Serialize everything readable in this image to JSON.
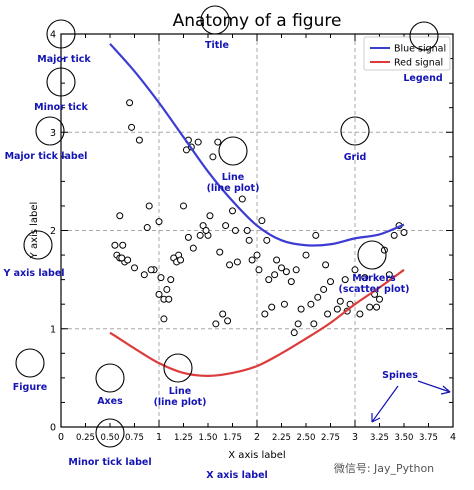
{
  "chart_data": {
    "type": "line",
    "title": "Anatomy of a figure",
    "xlabel": "X axis label",
    "ylabel": "Y axis label",
    "xlim": [
      0,
      4
    ],
    "ylim": [
      0,
      4
    ],
    "grid": true,
    "legend_position": "top-right",
    "major_xticks": [
      "0",
      "1",
      "2",
      "3",
      "4"
    ],
    "major_yticks": [
      "0",
      "1",
      "2",
      "3",
      "4"
    ],
    "minor_xticks": [
      "0.25",
      "0.50",
      "0.75",
      "1.25",
      "1.50",
      "1.75",
      "2.25",
      "2.50",
      "2.75",
      "3.25",
      "3.50",
      "3.75"
    ],
    "series": [
      {
        "name": "Blue signal",
        "color": "#3c3cd2",
        "x": [
          0.5,
          0.75,
          1.0,
          1.25,
          1.5,
          1.75,
          2.0,
          2.25,
          2.5,
          2.75,
          3.0,
          3.25,
          3.5
        ],
        "y": [
          3.9,
          3.62,
          3.3,
          2.95,
          2.6,
          2.3,
          2.05,
          1.9,
          1.85,
          1.86,
          1.92,
          1.96,
          2.06
        ]
      },
      {
        "name": "Red signal",
        "color": "#dc3c3c",
        "x": [
          0.5,
          0.75,
          1.0,
          1.25,
          1.5,
          1.75,
          2.0,
          2.25,
          2.5,
          2.75,
          3.0,
          3.25,
          3.5
        ],
        "y": [
          0.96,
          0.8,
          0.65,
          0.55,
          0.52,
          0.55,
          0.62,
          0.75,
          0.9,
          1.06,
          1.25,
          1.42,
          1.6
        ]
      },
      {
        "name": "Markers",
        "type": "scatter",
        "x": [
          0.7,
          0.72,
          0.8,
          0.6,
          0.63,
          0.9,
          0.88,
          1.0,
          1.05,
          1.28,
          1.33,
          1.4,
          1.55,
          1.6,
          1.25,
          1.2,
          0.95,
          1.02,
          1.08,
          1.15,
          1.3,
          1.45,
          1.5,
          1.68,
          1.75,
          1.85,
          1.9,
          2.05,
          2.1,
          2.2,
          2.3,
          2.4,
          2.5,
          2.6,
          2.7,
          2.75,
          2.9,
          3.0,
          3.1,
          3.2,
          3.3,
          3.35,
          3.4,
          3.45,
          3.5,
          0.55,
          0.57,
          0.6,
          0.65,
          0.75,
          0.85,
          1.12,
          1.18,
          1.22,
          1.35,
          1.42,
          1.52,
          1.62,
          1.72,
          1.8,
          1.95,
          2.0,
          2.02,
          2.12,
          2.18,
          2.25,
          2.35,
          2.45,
          2.55,
          2.62,
          2.68,
          2.82,
          2.92,
          3.05,
          3.15,
          3.25,
          0.62,
          0.68,
          1.0,
          1.05,
          1.3,
          1.58,
          1.65,
          1.78,
          1.92,
          2.08,
          2.28,
          2.42,
          2.58,
          2.72,
          2.85,
          0.92,
          1.1,
          1.48,
          1.7,
          2.15,
          2.38,
          2.95,
          3.22
        ],
        "y": [
          3.3,
          3.05,
          2.92,
          2.15,
          1.85,
          2.25,
          2.03,
          2.09,
          1.1,
          2.82,
          2.85,
          2.9,
          2.75,
          2.9,
          2.25,
          1.75,
          1.6,
          1.52,
          1.4,
          1.72,
          1.93,
          2.05,
          1.95,
          2.05,
          2.2,
          2.32,
          2.0,
          2.1,
          1.9,
          1.7,
          1.58,
          1.6,
          1.75,
          1.95,
          1.65,
          1.48,
          1.5,
          1.6,
          1.52,
          1.35,
          1.8,
          1.55,
          1.95,
          2.05,
          1.98,
          1.85,
          1.75,
          1.72,
          1.68,
          1.62,
          1.55,
          1.5,
          1.68,
          1.7,
          1.82,
          1.95,
          2.15,
          1.78,
          1.65,
          1.68,
          1.7,
          1.75,
          1.6,
          1.5,
          1.55,
          1.62,
          1.48,
          1.2,
          1.25,
          1.32,
          1.4,
          1.2,
          1.18,
          1.15,
          1.22,
          1.3,
          1.72,
          1.7,
          1.35,
          1.3,
          2.92,
          1.05,
          1.15,
          2.0,
          1.9,
          1.15,
          1.25,
          1.05,
          1.05,
          1.15,
          1.28,
          1.6,
          1.3,
          2.0,
          1.08,
          1.22,
          0.96,
          1.25,
          1.22
        ]
      }
    ],
    "annotations": [
      "Major tick",
      "Minor tick",
      "Major tick label",
      "Y axis label",
      "Figure",
      "Axes",
      "Line\n(line plot)",
      "Title",
      "Legend",
      "Grid",
      "Line\n(line plot)",
      "Markers\n(scatter plot)",
      "Spines",
      "Minor tick label",
      "X axis label"
    ]
  },
  "watermark": "微信号: Jay_Python",
  "annotation_color": "#1414b4",
  "grid_color": "#a8a8a8"
}
